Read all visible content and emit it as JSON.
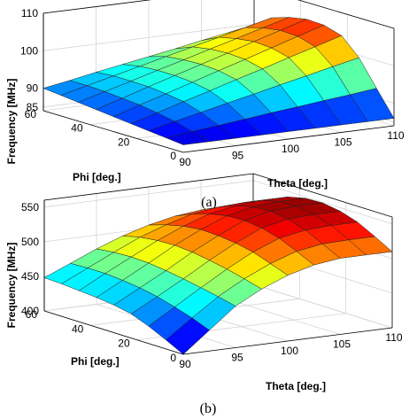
{
  "chart_data": [
    {
      "type": "surface",
      "caption": "(a)",
      "xlabel": "Theta [deg.]",
      "ylabel": "Phi [deg.]",
      "zlabel": "Frequency [MHz]",
      "x_ticks": [
        "90",
        "95",
        "100",
        "105",
        "110"
      ],
      "y_ticks": [
        "0",
        "20",
        "40",
        "60"
      ],
      "z_ticks": [
        "85",
        "90",
        "100",
        "110"
      ],
      "xlim": [
        90,
        110
      ],
      "ylim": [
        0,
        60
      ],
      "zlim": [
        84,
        110
      ],
      "grid": true,
      "colormap": "jet",
      "theta": [
        90,
        92.5,
        95,
        97.5,
        100,
        102.5,
        105,
        107.5,
        110
      ],
      "phi": [
        0,
        7.5,
        15,
        22.5,
        30,
        37.5,
        45,
        52.5,
        60
      ],
      "frequency": [
        [
          86.0,
          86.0,
          86.0,
          86.0,
          86.0,
          86.0,
          86.0,
          86.0,
          86.0
        ],
        [
          86.5,
          87.3,
          88.0,
          88.8,
          89.6,
          90.3,
          91.1,
          91.8,
          92.6
        ],
        [
          87.0,
          88.6,
          90.1,
          91.7,
          93.2,
          94.8,
          96.3,
          97.9,
          99.4
        ],
        [
          87.5,
          89.5,
          91.6,
          93.6,
          95.7,
          97.7,
          99.8,
          101.8,
          103.9
        ],
        [
          88.0,
          90.2,
          92.3,
          94.5,
          96.7,
          98.8,
          101.0,
          103.2,
          105.3
        ],
        [
          88.5,
          90.6,
          92.8,
          94.9,
          97.0,
          99.1,
          101.3,
          103.4,
          105.5
        ],
        [
          89.0,
          91.0,
          92.9,
          94.9,
          96.8,
          98.8,
          100.7,
          102.7,
          104.6
        ],
        [
          89.5,
          91.2,
          92.9,
          94.6,
          96.3,
          98.0,
          99.7,
          101.4,
          103.1
        ],
        [
          90.0,
          91.2,
          92.5,
          93.7,
          94.9,
          96.1,
          97.4,
          98.6,
          99.8
        ]
      ]
    },
    {
      "type": "surface",
      "caption": "(b)",
      "xlabel": "Theta [deg.]",
      "ylabel": "Phi [deg.]",
      "zlabel": "Frequency [MHz]",
      "x_ticks": [
        "90",
        "95",
        "100",
        "105",
        "110"
      ],
      "y_ticks": [
        "0",
        "20",
        "40",
        "60"
      ],
      "z_ticks": [
        "400",
        "450",
        "500",
        "550"
      ],
      "xlim": [
        90,
        110
      ],
      "ylim": [
        0,
        60
      ],
      "zlim": [
        400,
        560
      ],
      "grid": true,
      "colormap": "jet",
      "theta": [
        90,
        92.5,
        95,
        97.5,
        100,
        102.5,
        105,
        107.5,
        110
      ],
      "phi": [
        0,
        7.5,
        15,
        22.5,
        30,
        37.5,
        45,
        52.5,
        60
      ],
      "frequency": [
        [
          400,
          430,
          460,
          480,
          495,
          505,
          510,
          510,
          510
        ],
        [
          413,
          440,
          466,
          487,
          504,
          517,
          523,
          524,
          524
        ],
        [
          425,
          448,
          471,
          493,
          513,
          528,
          535,
          537,
          537
        ],
        [
          435,
          455,
          476,
          498,
          518,
          535,
          543,
          545,
          545
        ],
        [
          440,
          460,
          480,
          502,
          521,
          538,
          547,
          549,
          549
        ],
        [
          443,
          463,
          483,
          504,
          522,
          537,
          545,
          548,
          548
        ],
        [
          445,
          465,
          484,
          503,
          519,
          532,
          539,
          542,
          542
        ],
        [
          447,
          465,
          483,
          500,
          513,
          524,
          529,
          531,
          531
        ],
        [
          448,
          464,
          480,
          494,
          505,
          513,
          517,
          518,
          518
        ]
      ]
    }
  ]
}
